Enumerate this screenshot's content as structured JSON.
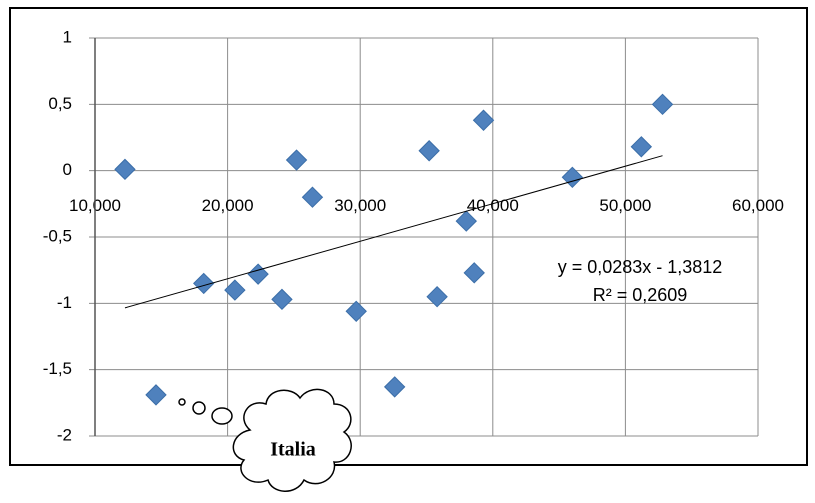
{
  "chart_data": {
    "type": "scatter",
    "x": [
      12260,
      14600,
      18200,
      20550,
      22300,
      24100,
      25200,
      26400,
      29700,
      32600,
      35200,
      35800,
      38000,
      38600,
      39300,
      46000,
      51200,
      52800
    ],
    "values": [
      0.01,
      -1.69,
      -0.85,
      -0.9,
      -0.78,
      -0.97,
      0.08,
      -0.2,
      -1.06,
      -1.63,
      0.15,
      -0.95,
      -0.38,
      -0.77,
      0.38,
      -0.05,
      0.18,
      0.5
    ],
    "color": "#4f81bd",
    "xlim": [
      10000,
      60000
    ],
    "xticks": [
      {
        "value": 10000,
        "label": "10,000"
      },
      {
        "value": 20000,
        "label": "20,000"
      },
      {
        "value": 30000,
        "label": "30,000"
      },
      {
        "value": 40000,
        "label": "40,000"
      },
      {
        "value": 50000,
        "label": "50,000"
      },
      {
        "value": 60000,
        "label": "60,000"
      }
    ],
    "ylim": [
      -2,
      1
    ],
    "yticks": [
      -2,
      {
        "value": -1.5,
        "label": "-1,5"
      },
      -1,
      {
        "value": -0.5,
        "label": "-0,5"
      },
      0,
      {
        "value": 0.5,
        "label": "0,5"
      },
      1
    ],
    "grid": true,
    "trendline": {
      "x": [
        12260,
        52800
      ],
      "y": [
        -1.034,
        0.113
      ],
      "equation": "y = 0,0283x - 1,3812",
      "r2": "R² = 0,2609",
      "color": "#000000"
    },
    "annotation": "Italia"
  }
}
